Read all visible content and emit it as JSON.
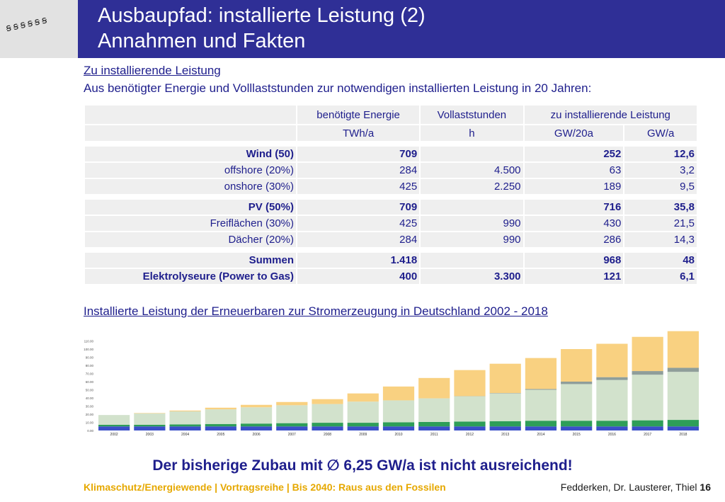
{
  "logo": {
    "text": "ꞩꞩꞩꞩꞩꞩ"
  },
  "header": {
    "title_line1": "Ausbaupfad: installierte Leistung (2)",
    "title_line2": "Annahmen und Fakten"
  },
  "section1": {
    "heading": "Zu installierende Leistung",
    "description": "Aus benötigter Energie und Volllaststunden zur notwendigen installierten Leistung in 20 Jahren:"
  },
  "table": {
    "header1": [
      "",
      "benötigte Energie",
      "Vollaststunden",
      "zu installierende Leistung"
    ],
    "header2": [
      "",
      "TWh/a",
      "h",
      "GW/20a",
      "GW/a"
    ],
    "rows": [
      {
        "label": "Wind (50)",
        "energy": "709",
        "hours": "",
        "gw20": "252",
        "gwa": "12,6",
        "bold": true,
        "gap_before": false
      },
      {
        "label": "offshore (20%)",
        "energy": "284",
        "hours": "4.500",
        "gw20": "63",
        "gwa": "3,2",
        "bold": false,
        "gap_before": false
      },
      {
        "label": "onshore (30%)",
        "energy": "425",
        "hours": "2.250",
        "gw20": "189",
        "gwa": "9,5",
        "bold": false,
        "gap_before": false
      },
      {
        "label": "PV (50%)",
        "energy": "709",
        "hours": "",
        "gw20": "716",
        "gwa": "35,8",
        "bold": true,
        "gap_before": true
      },
      {
        "label": "Freiflächen (30%)",
        "energy": "425",
        "hours": "990",
        "gw20": "430",
        "gwa": "21,5",
        "bold": false,
        "gap_before": false
      },
      {
        "label": "Dächer (20%)",
        "energy": "284",
        "hours": "990",
        "gw20": "286",
        "gwa": "14,3",
        "bold": false,
        "gap_before": false
      },
      {
        "label": "Summen",
        "energy": "1.418",
        "hours": "",
        "gw20": "968",
        "gwa": "48",
        "bold": true,
        "gap_before": true
      },
      {
        "label": "Elektrolyseure (Power to Gas)",
        "energy": "400",
        "hours": "3.300",
        "gw20": "121",
        "gwa": "6,1",
        "bold": true,
        "gap_before": false
      }
    ]
  },
  "section2": {
    "heading": "Installierte Leistung der Erneuerbaren zur Stromerzeugung in Deutschland 2002 - 2018"
  },
  "chart_data": {
    "type": "bar",
    "stacked": true,
    "categories": [
      "2002",
      "2003",
      "2004",
      "2005",
      "2006",
      "2007",
      "2008",
      "2009",
      "2010",
      "2011",
      "2012",
      "2013",
      "2014",
      "2015",
      "2016",
      "2017",
      "2018"
    ],
    "ylim": [
      0,
      120
    ],
    "yticks": [
      "0.00",
      "10.00",
      "20.00",
      "30.00",
      "40.00",
      "50.00",
      "60.00",
      "70.00",
      "80.00",
      "90.00",
      "100.00",
      "110.00"
    ],
    "series": [
      {
        "color": "#3a4fc8",
        "values": [
          5,
          5,
          5,
          5,
          5,
          5,
          5,
          5,
          5,
          5,
          5,
          5,
          5,
          5,
          5,
          5,
          5
        ]
      },
      {
        "color": "#2e9e58",
        "values": [
          2,
          2,
          2.5,
          3,
          3.5,
          4,
          4.5,
          4.5,
          5,
          5.5,
          6,
          6.5,
          7,
          7,
          7,
          7.5,
          8
        ]
      },
      {
        "color": "#d2e2cc",
        "values": [
          12,
          14,
          16,
          18,
          20,
          22,
          23,
          26,
          27,
          29,
          31,
          34,
          38,
          45,
          50,
          56,
          59
        ]
      },
      {
        "color": "#8f9e9a",
        "values": [
          0,
          0,
          0,
          0,
          0,
          0,
          0,
          0,
          0,
          0,
          0.2,
          0.5,
          1,
          3,
          3.5,
          4.5,
          5
        ]
      },
      {
        "color": "#f9d181",
        "values": [
          0,
          0.5,
          1,
          2,
          3,
          4,
          6,
          10,
          17,
          25,
          32,
          36,
          38,
          40,
          41,
          42,
          45
        ]
      }
    ]
  },
  "footer": {
    "claim": "Der bisherige Zubau mit ∅ 6,25 GW/a ist nicht ausreichend!",
    "series_line": "Klimaschutz/Energiewende | Vortragsreihe | Bis 2040: Raus aus den Fossilen",
    "authors": "Fedderken, Dr. Lausterer, Thiel",
    "page_number": "16"
  }
}
